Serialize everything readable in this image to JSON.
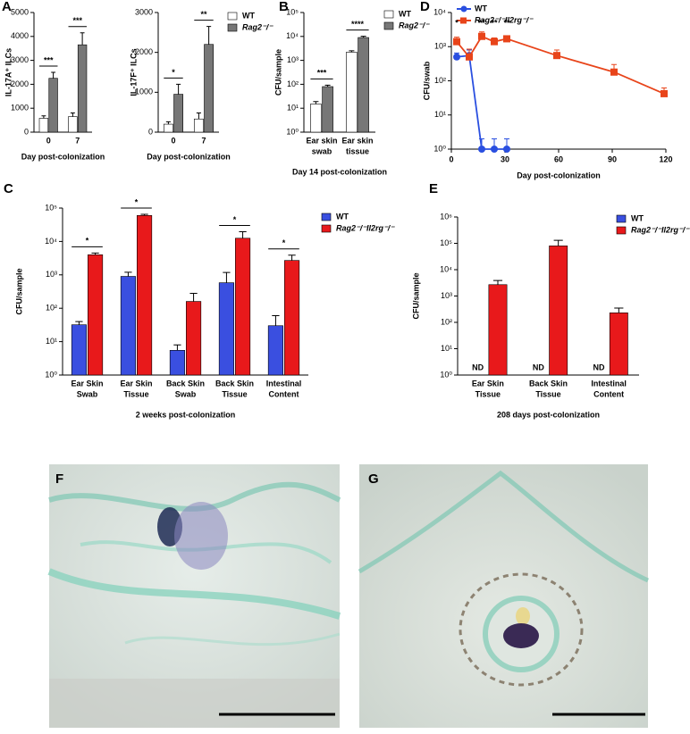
{
  "chart_data": [
    {
      "type": "bar",
      "panel": "A",
      "ylabel": "IL-17A⁺ ILCs",
      "xlabel": "Day post-colonization",
      "categories": [
        "0",
        "7"
      ],
      "ylim": [
        0,
        5000
      ],
      "yticks": [
        0,
        1000,
        2000,
        3000,
        4000,
        5000
      ],
      "series": [
        {
          "color": "#ffffff",
          "values": [
            580,
            650
          ],
          "errors": [
            100,
            150
          ]
        },
        {
          "color": "#777777",
          "values": [
            2250,
            3650
          ],
          "errors": [
            250,
            500
          ]
        }
      ],
      "significance": [
        "***",
        "***"
      ]
    },
    {
      "type": "bar",
      "ylabel": "IL-17F⁺ ILCs",
      "xlabel": "Day post-colonization",
      "categories": [
        "0",
        "7"
      ],
      "ylim": [
        0,
        3000
      ],
      "yticks": [
        0,
        1000,
        2000,
        3000
      ],
      "series": [
        {
          "name": "WT",
          "color": "#ffffff",
          "values": [
            200,
            330
          ],
          "errors": [
            60,
            150
          ]
        },
        {
          "name": "Rag2⁻/⁻",
          "color": "#777777",
          "values": [
            950,
            2200
          ],
          "errors": [
            250,
            450
          ]
        }
      ],
      "significance": [
        "*",
        "**"
      ]
    },
    {
      "type": "bar",
      "panel": "B",
      "ylabel": "CFU/sample",
      "xlabel": "Day 14 post-colonization",
      "log_scale": true,
      "categories": [
        [
          "Ear skin",
          "swab"
        ],
        [
          "Ear skin",
          "tissue"
        ]
      ],
      "ylim": [
        1,
        100000
      ],
      "yticks": [
        {
          "value": 1,
          "label": "10⁰"
        },
        {
          "value": 10,
          "label": "10¹"
        },
        {
          "value": 100,
          "label": "10²"
        },
        {
          "value": 1000,
          "label": "10³"
        },
        {
          "value": 10000,
          "label": "10⁴"
        },
        {
          "value": 100000,
          "label": "10⁵"
        }
      ],
      "series": [
        {
          "name": "WT",
          "color": "#ffffff",
          "values": [
            15,
            2200
          ],
          "errors": [
            4,
            300
          ]
        },
        {
          "name": "Rag2⁻/⁻",
          "color": "#777777",
          "values": [
            80,
            9000
          ],
          "errors": [
            12,
            1200
          ]
        }
      ],
      "significance": [
        "***",
        "****"
      ]
    },
    {
      "type": "line",
      "panel": "D",
      "ylabel": "CFU/swab",
      "xlabel": "Day post-colonization",
      "log_scale": true,
      "xlim": [
        0,
        120
      ],
      "xticks": [
        0,
        30,
        60,
        90,
        120
      ],
      "ylim": [
        1,
        10000
      ],
      "yticks": [
        {
          "value": 1,
          "label": "10⁰"
        },
        {
          "value": 10,
          "label": "10¹"
        },
        {
          "value": 100,
          "label": "10²"
        },
        {
          "value": 1000,
          "label": "10³"
        },
        {
          "value": 10000,
          "label": "10⁴"
        }
      ],
      "series": [
        {
          "name": "WT",
          "color": "#2a4fe0",
          "x": [
            3,
            10,
            17,
            24,
            31
          ],
          "values": [
            500,
            550,
            1,
            1,
            1
          ],
          "errors": [
            150,
            250,
            1,
            1,
            1
          ]
        },
        {
          "name": "Rag2⁻/⁻Il2rg⁻/⁻",
          "color": "#e8441a",
          "x": [
            3,
            10,
            17,
            24,
            31,
            59,
            91,
            119
          ],
          "values": [
            1400,
            500,
            2000,
            1400,
            1700,
            550,
            180,
            42
          ],
          "errors": [
            500,
            350,
            700,
            400,
            300,
            250,
            120,
            20
          ]
        }
      ],
      "annotations": [
        {
          "x": 3,
          "text": "*"
        },
        {
          "x": 17,
          "text": "**"
        },
        {
          "x": 24,
          "text": "**"
        },
        {
          "x": 31,
          "text": "**"
        }
      ]
    },
    {
      "type": "bar",
      "panel": "C",
      "ylabel": "CFU/sample",
      "xlabel": "2 weeks post-colonization",
      "log_scale": true,
      "categories": [
        [
          "Ear Skin",
          "Swab"
        ],
        [
          "Ear Skin",
          "Tissue"
        ],
        [
          "Back Skin",
          "Swab"
        ],
        [
          "Back Skin",
          "Tissue"
        ],
        [
          "Intestinal",
          "Content"
        ]
      ],
      "ylim": [
        1,
        100000
      ],
      "yticks": [
        {
          "value": 1,
          "label": "10⁰"
        },
        {
          "value": 10,
          "label": "10¹"
        },
        {
          "value": 100,
          "label": "10²"
        },
        {
          "value": 1000,
          "label": "10³"
        },
        {
          "value": 10000,
          "label": "10⁴"
        },
        {
          "value": 100000,
          "label": "10⁵"
        }
      ],
      "series": [
        {
          "name": "WT",
          "color": "#3a4fe0",
          "values": [
            32,
            900,
            5.5,
            580,
            30
          ],
          "errors": [
            8,
            300,
            2.5,
            600,
            30
          ]
        },
        {
          "name": "Rag2⁻/⁻Il2rg⁻/⁻",
          "color": "#e8191b",
          "values": [
            4000,
            60000,
            160,
            12500,
            2700
          ],
          "errors": [
            500,
            5000,
            120,
            7000,
            1200
          ]
        }
      ],
      "significance": [
        "*",
        "*",
        null,
        "*",
        "*"
      ]
    },
    {
      "type": "bar",
      "panel": "E",
      "ylabel": "CFU/sample",
      "xlabel": "208 days post-colonization",
      "log_scale": true,
      "categories": [
        [
          "Ear Skin",
          "Tissue"
        ],
        [
          "Back Skin",
          "Tissue"
        ],
        [
          "Intestinal",
          "Content"
        ]
      ],
      "ylim": [
        1,
        1000000
      ],
      "yticks": [
        {
          "value": 1,
          "label": "10⁰"
        },
        {
          "value": 10,
          "label": "10¹"
        },
        {
          "value": 100,
          "label": "10²"
        },
        {
          "value": 1000,
          "label": "10³"
        },
        {
          "value": 10000,
          "label": "10⁴"
        },
        {
          "value": 100000,
          "label": "10⁵"
        },
        {
          "value": 1000000,
          "label": "10⁶"
        }
      ],
      "series": [
        {
          "name": "WT",
          "color": "#3a4fe0",
          "values": [
            null,
            null,
            null
          ],
          "value_labels": [
            "ND",
            "ND",
            "ND"
          ]
        },
        {
          "name": "Rag2⁻/⁻Il2rg⁻/⁻",
          "color": "#e8191b",
          "values": [
            2700,
            80000,
            230
          ],
          "errors": [
            1200,
            50000,
            120
          ]
        }
      ]
    }
  ],
  "images": [
    {
      "panel": "F"
    },
    {
      "panel": "G"
    }
  ]
}
